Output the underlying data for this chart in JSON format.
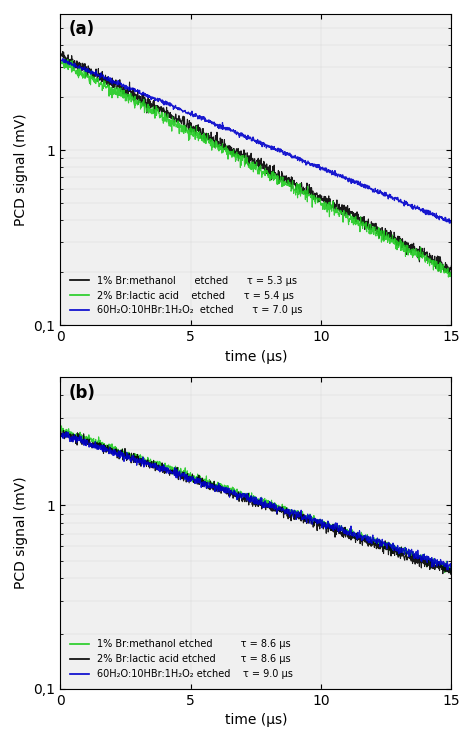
{
  "panel_a": {
    "label": "(a)",
    "tau_black": 5.3,
    "tau_green": 5.4,
    "tau_blue": 7.0,
    "A_black": 3.5,
    "A_green": 3.2,
    "A_blue": 3.3,
    "ylim": [
      0.1,
      6.0
    ],
    "ylabel": "PCD signal (mV)",
    "xlabel": "time (μs)",
    "xlim": [
      0,
      15
    ],
    "xticks": [
      0,
      5,
      10,
      15
    ],
    "line_colors": [
      "#000000",
      "#22cc22",
      "#0000cc"
    ],
    "noise_scale": [
      0.04,
      0.04,
      0.015
    ],
    "t_start": 0.05
  },
  "panel_b": {
    "label": "(b)",
    "tau_green": 8.6,
    "tau_black": 8.6,
    "tau_blue": 9.0,
    "A_green": 2.6,
    "A_black": 2.5,
    "A_blue": 2.45,
    "ylim": [
      0.1,
      5.0
    ],
    "ylabel": "PCD signal (mV)",
    "xlabel": "time (μs)",
    "xlim": [
      0,
      15
    ],
    "xticks": [
      0,
      5,
      10,
      15
    ],
    "line_colors": [
      "#22cc22",
      "#000000",
      "#0000cc"
    ],
    "noise_scale": [
      0.025,
      0.03,
      0.025
    ],
    "t_start": 0.02
  },
  "background_color": "#f0f0f0",
  "fig_width": 4.74,
  "fig_height": 7.41,
  "dpi": 100
}
